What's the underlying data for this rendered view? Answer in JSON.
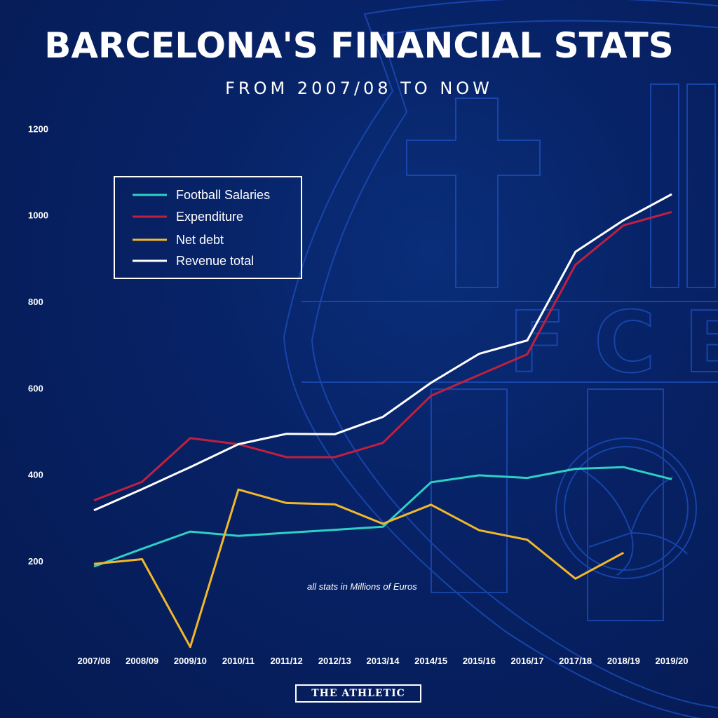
{
  "title": "BARCELONA'S FINANCIAL STATS",
  "subtitle": "FROM 2007/08 TO NOW",
  "note": "all stats in Millions of Euros",
  "brand": "THE ATHLETIC",
  "background_color": "#072266",
  "crest_letters": "FCB",
  "chart_data": {
    "type": "line",
    "title": "BARCELONA'S FINANCIAL STATS",
    "subtitle": "FROM 2007/08 TO NOW",
    "xlabel": "",
    "ylabel": "",
    "ylim": [
      0,
      1200
    ],
    "y_ticks": [
      200,
      400,
      600,
      800,
      1000,
      1200
    ],
    "grid": false,
    "legend_position": "top-left",
    "categories": [
      "2007/08",
      "2008/09",
      "2009/10",
      "2010/11",
      "2011/12",
      "2012/13",
      "2013/14",
      "2014/15",
      "2015/16",
      "2016/17",
      "2017/18",
      "2018/19",
      "2019/20"
    ],
    "series": [
      {
        "name": "Football Salaries",
        "color": "#2fd0c4",
        "values": [
          187,
          228,
          268,
          258,
          265,
          272,
          279,
          382,
          398,
          392,
          413,
          417,
          389
        ]
      },
      {
        "name": "Expenditure",
        "color": "#c02040",
        "values": [
          340,
          383,
          484,
          470,
          440,
          440,
          473,
          582,
          630,
          678,
          885,
          976,
          1007
        ]
      },
      {
        "name": "Net debt",
        "color": "#f2b82a",
        "values": [
          193,
          204,
          1,
          365,
          334,
          331,
          286,
          330,
          271,
          249,
          159,
          219,
          null
        ]
      },
      {
        "name": "Revenue total",
        "color": "#ffffff",
        "values": [
          317,
          366,
          417,
          470,
          494,
          493,
          533,
          612,
          679,
          710,
          915,
          988,
          1048
        ]
      }
    ]
  }
}
